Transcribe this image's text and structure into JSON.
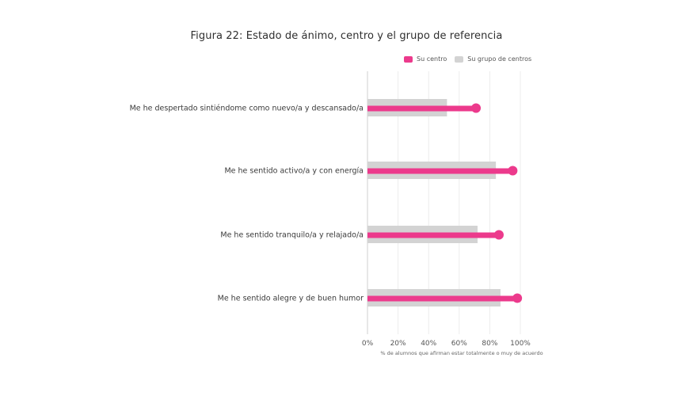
{
  "chart_data": {
    "type": "bar",
    "title": "Figura 22: Estado de ánimo, centro y el grupo de referencia",
    "xlabel": "% de alumnos que afirman estar totalmente o muy de acuerdo",
    "xlim": [
      0,
      100
    ],
    "x_ticks": [
      "0%",
      "20%",
      "40%",
      "60%",
      "80%",
      "100%"
    ],
    "legend_position": "top-right",
    "categories": [
      "Me he despertado sintiéndome como nuevo/a y descansado/a",
      "Me he sentido activo/a y con energía",
      "Me he sentido tranquilo/a y relajado/a",
      "Me he sentido alegre y de buen humor"
    ],
    "series": [
      {
        "name": "Su centro",
        "color": "#ec3a8c",
        "values": [
          71,
          95,
          86,
          98
        ]
      },
      {
        "name": "Su grupo de centros",
        "color": "#d3d3d3",
        "values": [
          52,
          84,
          72,
          87
        ]
      }
    ]
  }
}
